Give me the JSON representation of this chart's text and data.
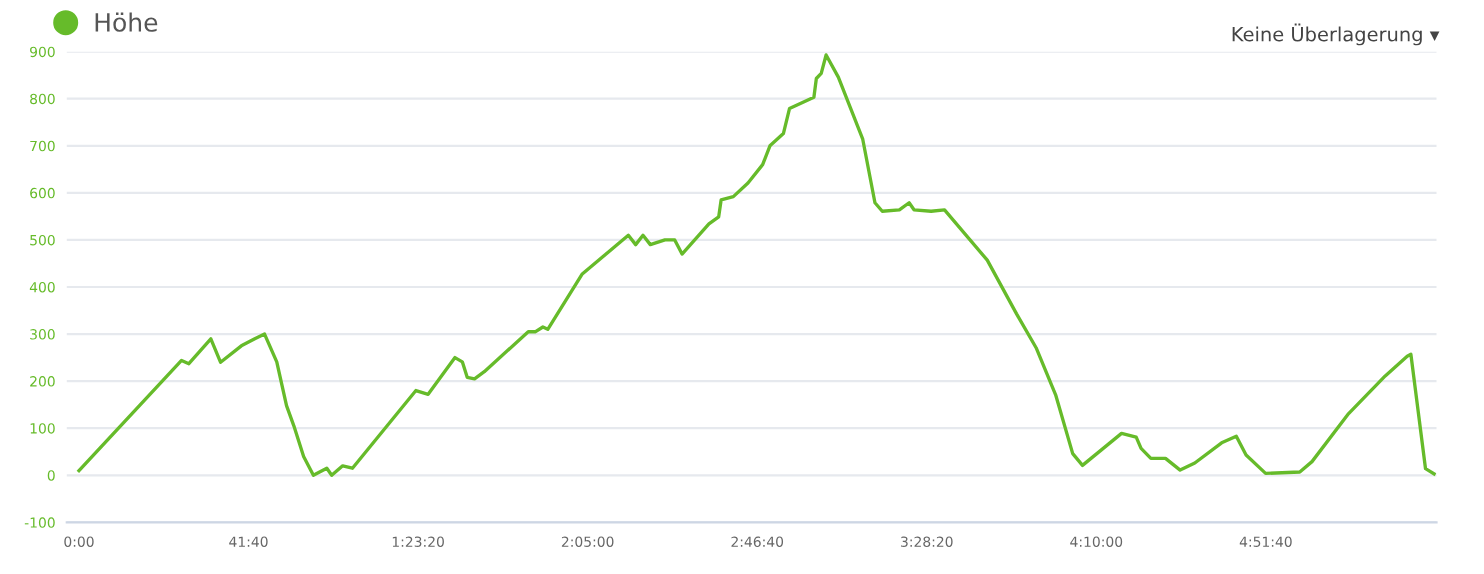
{
  "chart_data": {
    "type": "line",
    "annotations": [
      "Keine Überlagerung ▾"
    ],
    "series": [
      {
        "name": "Höhe",
        "color": "#66bb2a",
        "x": [
          0,
          1512,
          1620,
          1944,
          2088,
          2394,
          2592,
          2736,
          2916,
          3060,
          3168,
          3312,
          3456,
          3654,
          3726,
          3888,
          4032,
          4968,
          5148,
          5544,
          5652,
          5724,
          5832,
          5976,
          6624,
          6732,
          6840,
          6912,
          7416,
          8100,
          8208,
          8316,
          8424,
          8640,
          8784,
          8892,
          9288,
          9432,
          9468,
          9648,
          9864,
          10080,
          10188,
          10386,
          10476,
          10836,
          10872,
          10944,
          11016,
          11196,
          11556,
          11736,
          11844,
          12096,
          12240,
          12312,
          12564,
          12762,
          13392,
          13824,
          14112,
          14400,
          14652,
          14796,
          15372,
          15588,
          15660,
          15804,
          16020,
          16236,
          16452,
          16848,
          17064,
          17208,
          17496,
          18000,
          18180,
          18720,
          19260,
          19584,
          19638,
          19854,
          19980
        ],
        "values": [
          10,
          244,
          237,
          290,
          240,
          275,
          290,
          300,
          241,
          148,
          105,
          40,
          0,
          15,
          0,
          20,
          15,
          180,
          172,
          250,
          241,
          208,
          205,
          220,
          305,
          305,
          315,
          310,
          427,
          510,
          490,
          510,
          490,
          500,
          500,
          470,
          534,
          549,
          585,
          592,
          621,
          660,
          700,
          726,
          779,
          803,
          843,
          854,
          893,
          846,
          714,
          579,
          561,
          564,
          579,
          564,
          561,
          564,
          457,
          343,
          271,
          171,
          46,
          21,
          89,
          81,
          57,
          36,
          36,
          11,
          26,
          69,
          83,
          43,
          4,
          7,
          29,
          131,
          211,
          253,
          257,
          14,
          3
        ]
      }
    ],
    "xlim": [
      -180,
      20016
    ],
    "xticks": [
      {
        "value": 0,
        "label": "0:00"
      },
      {
        "value": 2500,
        "label": "41:40"
      },
      {
        "value": 5000,
        "label": "1:23:20"
      },
      {
        "value": 7500,
        "label": "2:05:00"
      },
      {
        "value": 10000,
        "label": "2:46:40"
      },
      {
        "value": 12500,
        "label": "3:28:20"
      },
      {
        "value": 15000,
        "label": "4:10:00"
      },
      {
        "value": 17500,
        "label": "4:51:40"
      }
    ],
    "ylim": [
      -100,
      900
    ],
    "yticks": [
      -100,
      0,
      100,
      200,
      300,
      400,
      500,
      600,
      700,
      800,
      900
    ],
    "grid": "y",
    "legend": "top left",
    "marker": "none",
    "line_style": "solid"
  }
}
